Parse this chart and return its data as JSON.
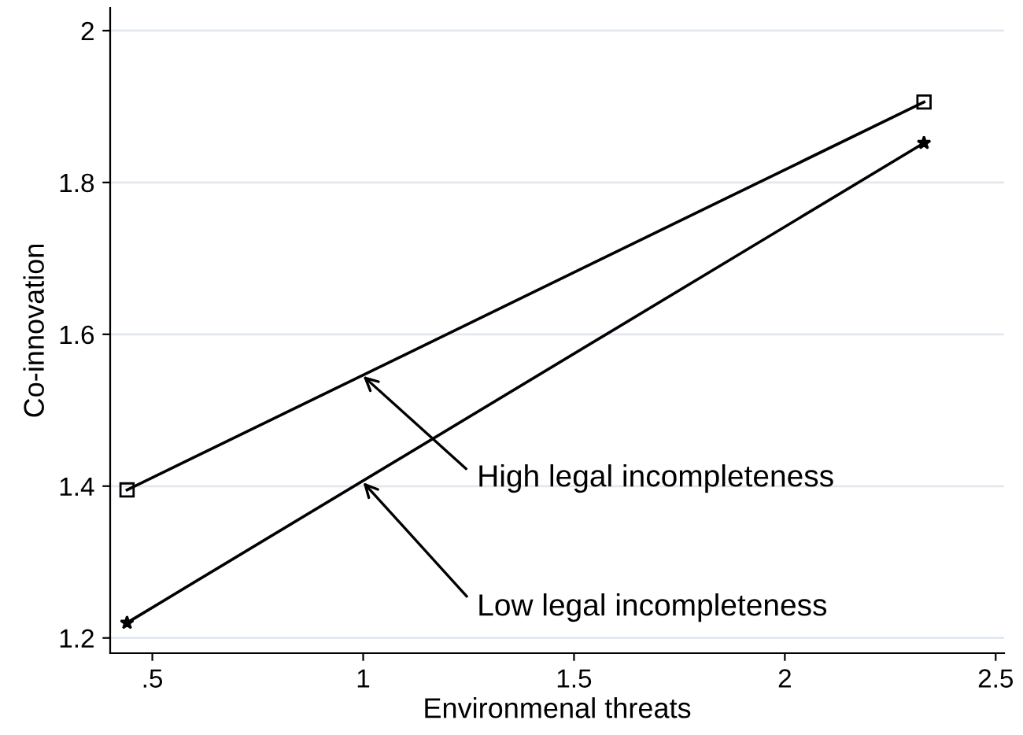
{
  "chart_data": {
    "type": "line",
    "xlabel": "Environmenal threats",
    "ylabel": "Co-innovation",
    "x": [
      0.44,
      2.33
    ],
    "series": [
      {
        "color": "#000000",
        "values": [
          1.395,
          1.906
        ],
        "marker": "square"
      },
      {
        "color": "#000000",
        "values": [
          1.22,
          1.852
        ],
        "marker": "star"
      }
    ],
    "xlim": [
      0.4,
      2.52
    ],
    "xticks": [
      {
        "value": 0.5,
        "label": ".5"
      },
      1,
      1.5,
      2,
      2.5
    ],
    "ylim": [
      1.18,
      2.03
    ],
    "yticks": [
      1.2,
      1.4,
      1.6,
      1.8,
      2
    ],
    "grid": "y",
    "line_style": "solid",
    "legend": false,
    "annotations": [
      {
        "text": "High legal incompleteness",
        "x": 1,
        "y": 1.545
      },
      {
        "text": "Low legal incompleteness",
        "x": 1,
        "y": 1.405
      }
    ]
  }
}
